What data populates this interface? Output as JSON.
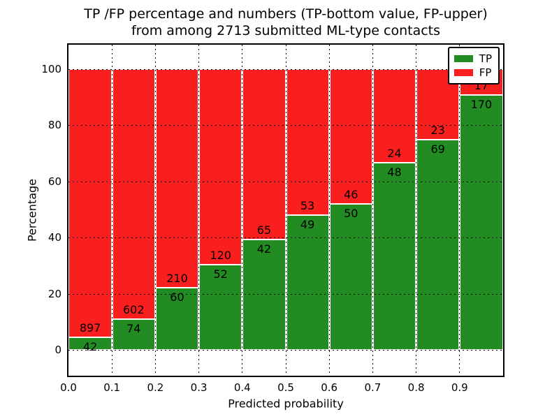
{
  "chart_data": {
    "type": "bar",
    "stacked": true,
    "normalized": "percent",
    "title_line1": "TP /FP percentage and numbers (TP-bottom value, FP-upper)",
    "title_line2": "from among 2713 submitted ML-type contacts",
    "total_contacts": 2713,
    "xlabel": "Predicted probability",
    "ylabel": "Percentage",
    "x_tick_labels": [
      "0.0",
      "0.1",
      "0.2",
      "0.3",
      "0.4",
      "0.5",
      "0.6",
      "0.7",
      "0.8",
      "0.9"
    ],
    "y_tick_labels": [
      0,
      20,
      40,
      60,
      80,
      100
    ],
    "xlim": [
      0.0,
      1.0
    ],
    "ylim": [
      -9.5,
      109.5
    ],
    "grid": "dotted",
    "bin_width": 0.1,
    "legend": {
      "position": "upper right",
      "entries": [
        {
          "label": "TP",
          "color": "#228b22"
        },
        {
          "label": "FP",
          "color": "#fa1f1f"
        }
      ]
    },
    "bins": [
      {
        "x_start": 0.0,
        "x_end": 0.1,
        "tp": 42,
        "fp": 897
      },
      {
        "x_start": 0.1,
        "x_end": 0.2,
        "tp": 74,
        "fp": 602
      },
      {
        "x_start": 0.2,
        "x_end": 0.3,
        "tp": 60,
        "fp": 210
      },
      {
        "x_start": 0.3,
        "x_end": 0.4,
        "tp": 52,
        "fp": 120
      },
      {
        "x_start": 0.4,
        "x_end": 0.5,
        "tp": 42,
        "fp": 65
      },
      {
        "x_start": 0.5,
        "x_end": 0.6,
        "tp": 49,
        "fp": 53
      },
      {
        "x_start": 0.6,
        "x_end": 0.7,
        "tp": 50,
        "fp": 46
      },
      {
        "x_start": 0.7,
        "x_end": 0.8,
        "tp": 48,
        "fp": 24
      },
      {
        "x_start": 0.8,
        "x_end": 0.9,
        "tp": 69,
        "fp": 23
      },
      {
        "x_start": 0.9,
        "x_end": 1.0,
        "tp": 170,
        "fp": 17
      }
    ]
  },
  "colors": {
    "tp_green": "#228b22",
    "fp_red": "#fa1f1f",
    "text": "#000000",
    "background": "#ffffff"
  }
}
